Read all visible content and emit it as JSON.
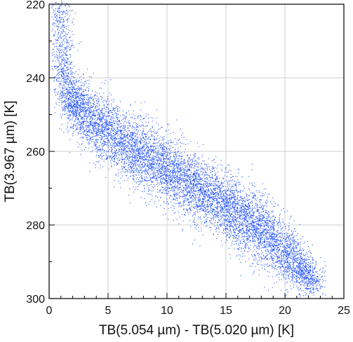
{
  "chart_data": {
    "type": "scatter",
    "xlabel": "TB(5.054 µm) - TB(5.020 µm) [K]",
    "ylabel": "TB(3.967 µm) [K]",
    "xlim": [
      0,
      25
    ],
    "ylim": [
      300,
      220
    ],
    "y_axis_inverted": true,
    "x_ticks": [
      0,
      5,
      10,
      15,
      20,
      25
    ],
    "y_ticks": [
      220,
      240,
      260,
      280,
      300
    ],
    "x_tick_labels": [
      "0",
      "5",
      "10",
      "15",
      "20",
      "25"
    ],
    "y_tick_labels": [
      "220",
      "240",
      "260",
      "280",
      "300"
    ],
    "grid": true,
    "point_color": "#1f4fff",
    "density_ridge": {
      "x": [
        0.8,
        1.0,
        1.3,
        1.6,
        2.0,
        3.0,
        5.0,
        7.5,
        10.0,
        12.5,
        15.0,
        17.5,
        20.0,
        21.5,
        22.5
      ],
      "y": [
        222,
        230,
        238,
        244,
        247,
        250,
        255,
        260,
        265,
        270,
        275,
        280,
        287,
        292,
        296
      ],
      "spread_y": [
        3.0,
        3.5,
        4.0,
        3.5,
        3.5,
        4.5,
        5.0,
        5.0,
        5.0,
        5.0,
        5.0,
        5.0,
        4.5,
        3.5,
        2.5
      ]
    }
  }
}
